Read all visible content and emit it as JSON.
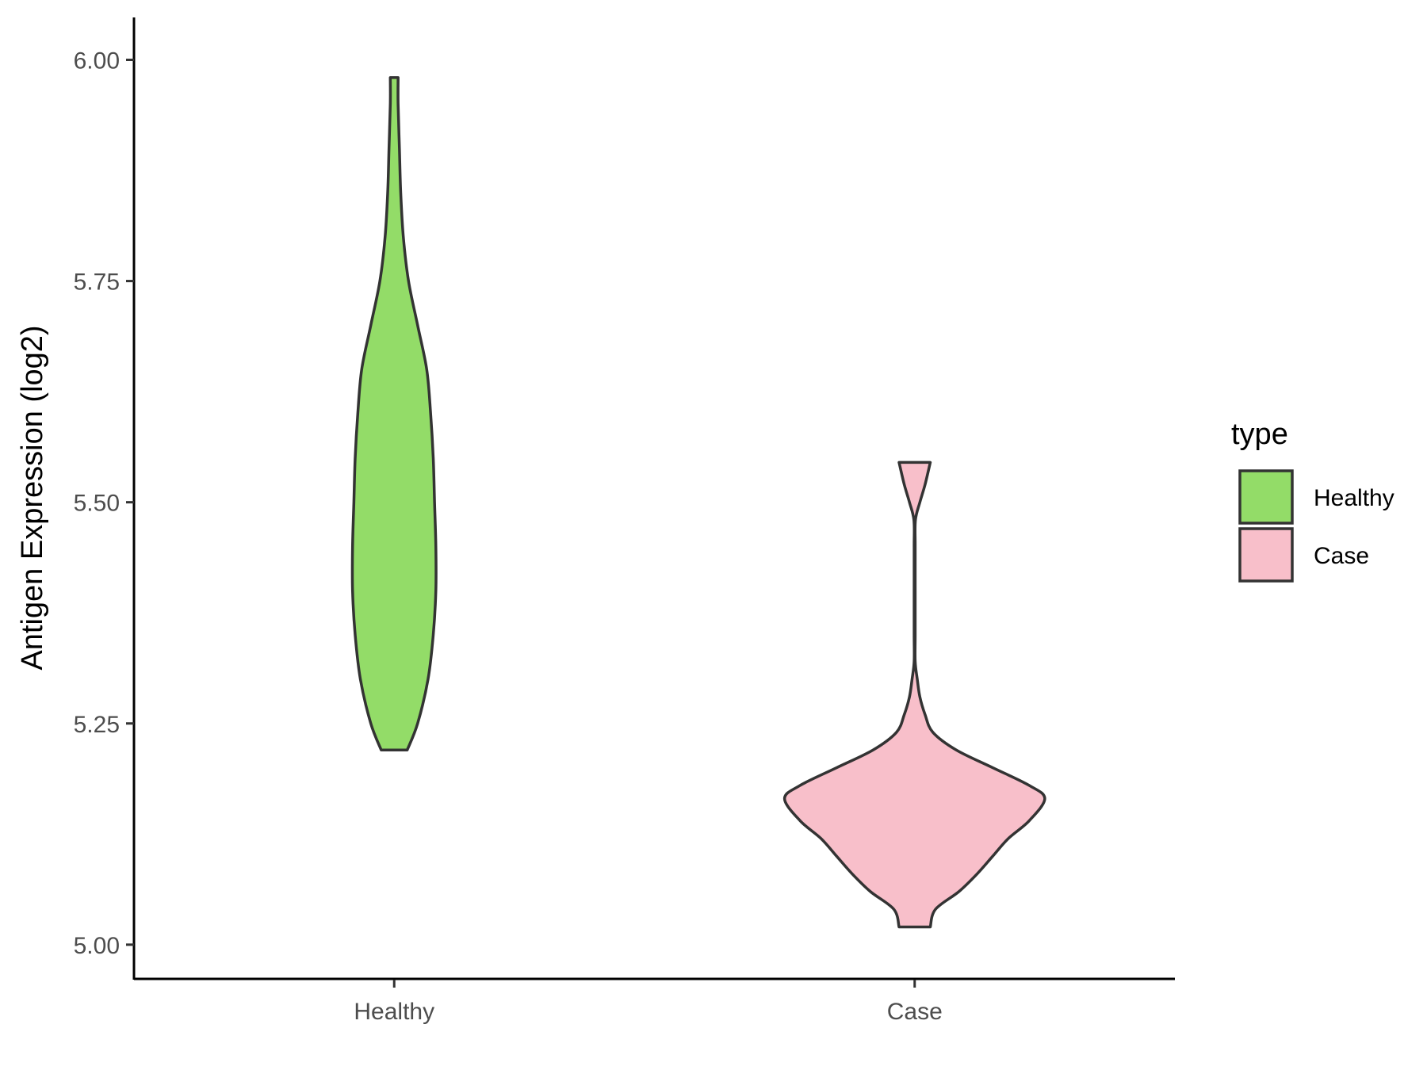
{
  "chart_data": {
    "type": "violin",
    "title": "",
    "xlabel": "",
    "ylabel": "Antigen Expression (log2)",
    "ylim": [
      4.99,
      6.03
    ],
    "yticks": [
      5.0,
      5.25,
      5.5,
      5.75,
      6.0
    ],
    "ytick_labels": [
      "5.00",
      "5.25",
      "5.50",
      "5.75",
      "6.00"
    ],
    "categories": [
      "Healthy",
      "Case"
    ],
    "legend": {
      "title": "type",
      "position": "right",
      "entries": [
        "Healthy",
        "Case"
      ]
    },
    "grid": false,
    "series": [
      {
        "name": "Healthy",
        "color": "#93dc68",
        "min": 5.22,
        "max": 5.98,
        "density": [
          [
            5.22,
            0.05
          ],
          [
            5.25,
            0.09
          ],
          [
            5.3,
            0.13
          ],
          [
            5.35,
            0.15
          ],
          [
            5.4,
            0.16
          ],
          [
            5.45,
            0.16
          ],
          [
            5.5,
            0.155
          ],
          [
            5.55,
            0.15
          ],
          [
            5.6,
            0.14
          ],
          [
            5.65,
            0.125
          ],
          [
            5.7,
            0.09
          ],
          [
            5.75,
            0.055
          ],
          [
            5.8,
            0.035
          ],
          [
            5.85,
            0.025
          ],
          [
            5.9,
            0.02
          ],
          [
            5.95,
            0.015
          ],
          [
            5.98,
            0.015
          ]
        ]
      },
      {
        "name": "Case",
        "color": "#f8bfca",
        "min": 5.02,
        "max": 5.545,
        "density": [
          [
            5.02,
            0.06
          ],
          [
            5.04,
            0.08
          ],
          [
            5.06,
            0.17
          ],
          [
            5.08,
            0.24
          ],
          [
            5.1,
            0.3
          ],
          [
            5.12,
            0.36
          ],
          [
            5.14,
            0.44
          ],
          [
            5.165,
            0.5
          ],
          [
            5.18,
            0.44
          ],
          [
            5.2,
            0.3
          ],
          [
            5.22,
            0.16
          ],
          [
            5.24,
            0.07
          ],
          [
            5.26,
            0.04
          ],
          [
            5.28,
            0.02
          ],
          [
            5.3,
            0.01
          ],
          [
            5.32,
            0.002
          ],
          [
            5.35,
            0.002
          ],
          [
            5.4,
            0.002
          ],
          [
            5.45,
            0.002
          ],
          [
            5.48,
            0.003
          ],
          [
            5.5,
            0.02
          ],
          [
            5.52,
            0.04
          ],
          [
            5.545,
            0.06
          ]
        ]
      }
    ]
  }
}
